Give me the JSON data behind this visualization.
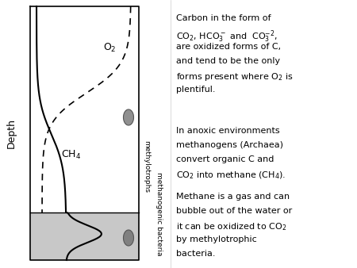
{
  "fig_width": 4.5,
  "fig_height": 3.38,
  "dpi": 100,
  "background_color": "#ffffff",
  "diagram": {
    "box_color": "#000000",
    "sediment_color": "#c8c8c8",
    "o2_label": "O$_2$",
    "ch4_label": "CH$_4$",
    "depth_label": "Depth",
    "methylotrophs_label": "methylotrophs",
    "methanogenic_label": "methanogenic bacteria",
    "line_color_solid": "#000000",
    "line_color_dashed": "#000000",
    "droplet_color": "#808080"
  },
  "text_panel": {
    "font_size": 8.0,
    "text_color": "#000000"
  }
}
